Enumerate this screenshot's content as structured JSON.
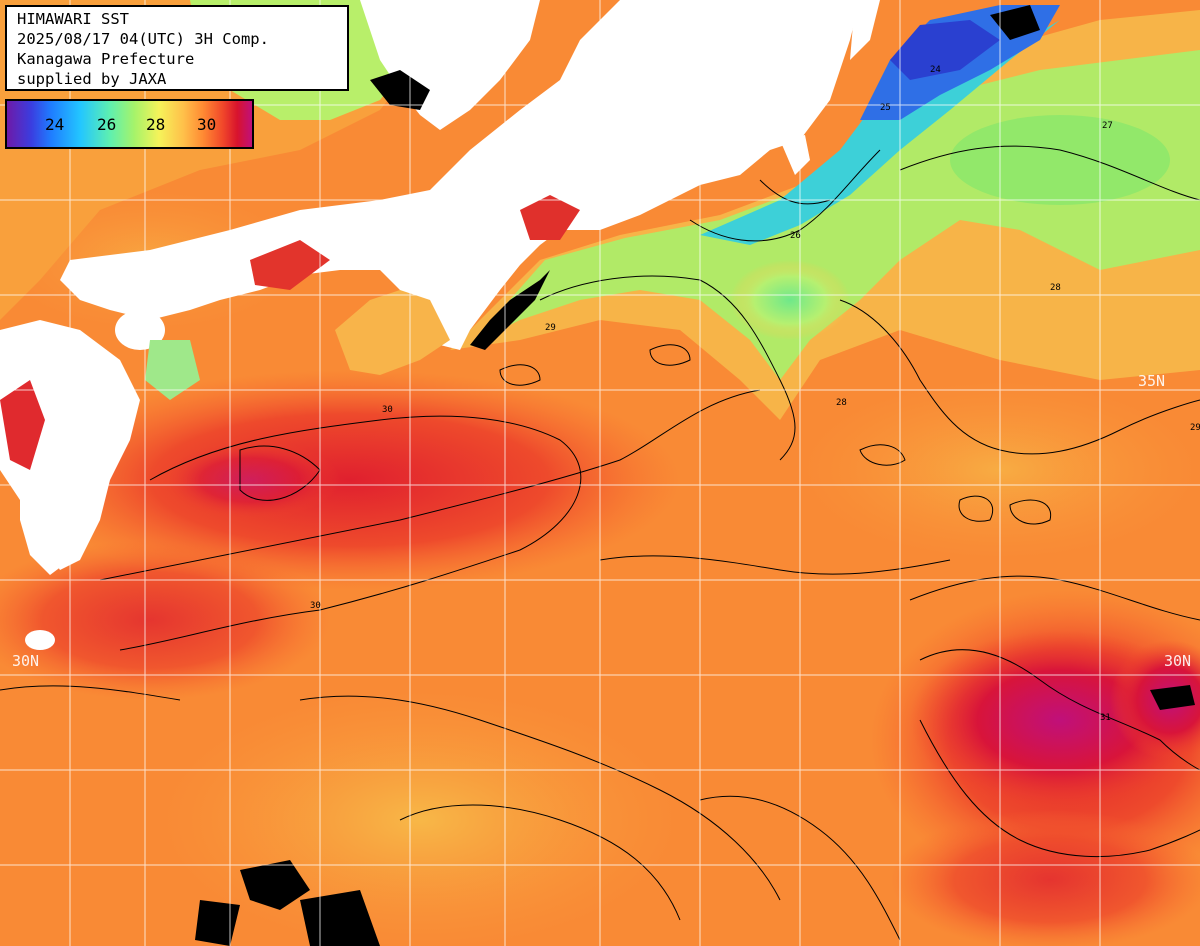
{
  "header": {
    "line1": "HIMAWARI SST",
    "line2": "2025/08/17 04(UTC) 3H Comp.",
    "line3": "Kanagawa Prefecture",
    "line4": "supplied by JAXA"
  },
  "legend": {
    "ticks": [
      "24",
      "26",
      "28",
      "30"
    ]
  },
  "grid_labels": {
    "lat_35_right": "35N",
    "lat_30_left": "30N",
    "lat_30_right": "30N"
  },
  "contour_labels": [
    "30",
    "28",
    "29",
    "27",
    "26",
    "25",
    "24",
    "30",
    "29",
    "28",
    "31"
  ],
  "colors": {
    "land": "#ffffff",
    "cloud_missing": "#000000",
    "grid": "#ffffff",
    "contour": "#000000",
    "sea_warm": "#ff8a33",
    "sea_hot": "#e8342a",
    "sea_hottest": "#c0107a",
    "sea_mid": "#f5c24a",
    "sea_cool": "#9cef6a",
    "sea_cold": "#23b6ff",
    "sea_coldest": "#2a50e0"
  }
}
